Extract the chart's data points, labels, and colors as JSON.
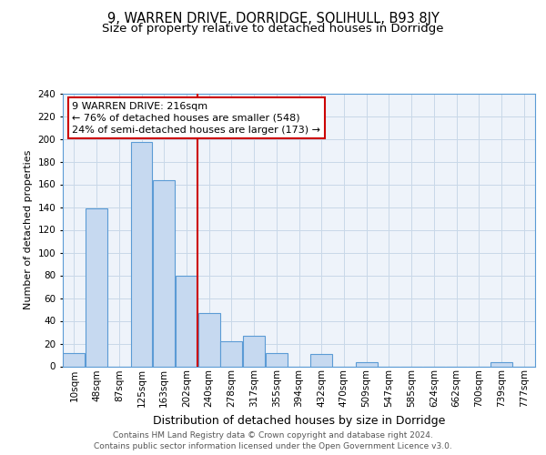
{
  "title": "9, WARREN DRIVE, DORRIDGE, SOLIHULL, B93 8JY",
  "subtitle": "Size of property relative to detached houses in Dorridge",
  "xlabel": "Distribution of detached houses by size in Dorridge",
  "ylabel": "Number of detached properties",
  "bar_labels": [
    "10sqm",
    "48sqm",
    "87sqm",
    "125sqm",
    "163sqm",
    "202sqm",
    "240sqm",
    "278sqm",
    "317sqm",
    "355sqm",
    "394sqm",
    "432sqm",
    "470sqm",
    "509sqm",
    "547sqm",
    "585sqm",
    "624sqm",
    "662sqm",
    "700sqm",
    "739sqm",
    "777sqm"
  ],
  "bar_values": [
    12,
    139,
    0,
    197,
    164,
    80,
    47,
    22,
    27,
    12,
    0,
    11,
    0,
    4,
    0,
    0,
    0,
    0,
    0,
    4,
    0
  ],
  "bar_color": "#c6d9f0",
  "bar_edge_color": "#5b9bd5",
  "vline_x": 6.0,
  "vline_color": "#cc0000",
  "annotation_line1": "9 WARREN DRIVE: 216sqm",
  "annotation_line2": "← 76% of detached houses are smaller (548)",
  "annotation_line3": "24% of semi-detached houses are larger (173) →",
  "ylim": [
    0,
    240
  ],
  "yticks": [
    0,
    20,
    40,
    60,
    80,
    100,
    120,
    140,
    160,
    180,
    200,
    220,
    240
  ],
  "footer_line1": "Contains HM Land Registry data © Crown copyright and database right 2024.",
  "footer_line2": "Contains public sector information licensed under the Open Government Licence v3.0.",
  "title_fontsize": 10.5,
  "subtitle_fontsize": 9.5,
  "ylabel_fontsize": 8,
  "xlabel_fontsize": 9,
  "tick_fontsize": 7.5,
  "footer_fontsize": 6.5,
  "bg_color": "#ffffff",
  "grid_color": "#c8d8e8",
  "plot_bg_color": "#eef3fa"
}
